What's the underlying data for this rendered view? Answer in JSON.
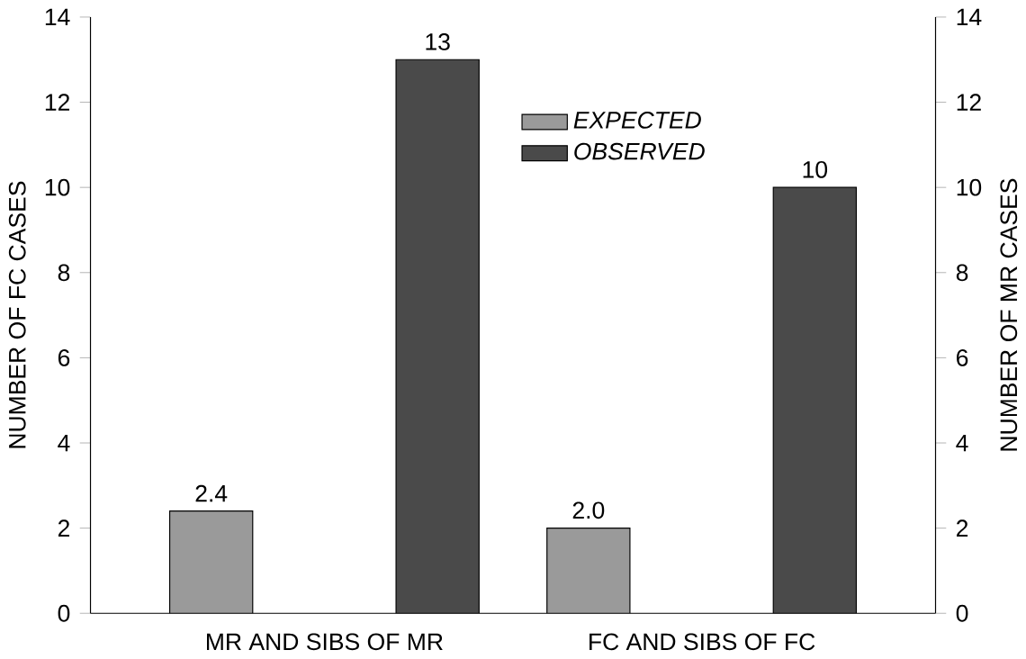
{
  "chart_data": {
    "type": "bar",
    "categories": [
      "MR AND SIBS OF MR",
      "FC AND SIBS OF FC"
    ],
    "series": [
      {
        "name": "EXPECTED",
        "color": "#9a9a9a",
        "values": [
          2.4,
          2.0
        ],
        "value_labels": [
          "2.4",
          "2.0"
        ]
      },
      {
        "name": "OBSERVED",
        "color": "#4a4a4a",
        "values": [
          13,
          10
        ],
        "value_labels": [
          "13",
          "10"
        ]
      }
    ],
    "ylabel": "NUMBER OF FC CASES",
    "y2label": "NUMBER OF MR CASES",
    "ylim": [
      0,
      14
    ],
    "yticks": [
      0,
      2,
      4,
      6,
      8,
      10,
      12,
      14
    ],
    "y2lim": [
      0,
      14
    ],
    "y2ticks": [
      0,
      2,
      4,
      6,
      8,
      10,
      12,
      14
    ],
    "legend": "top",
    "grid": false
  }
}
